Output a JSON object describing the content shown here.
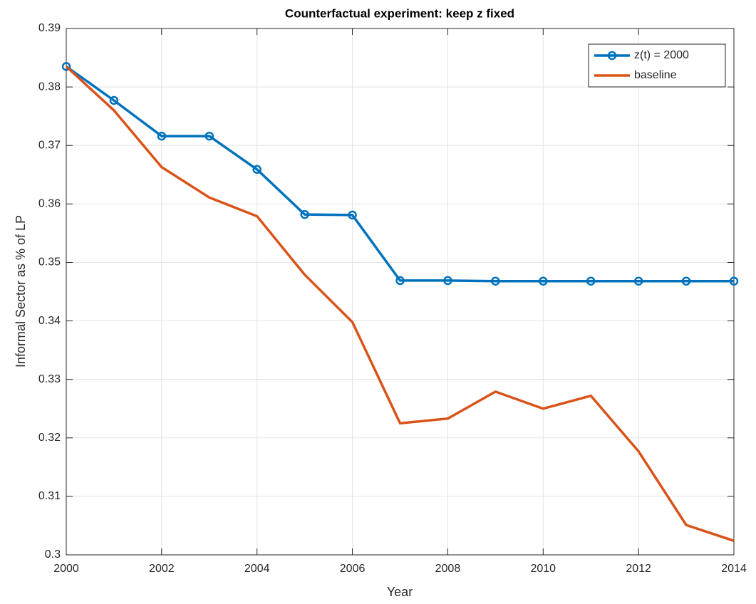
{
  "chart_data": {
    "type": "line",
    "title": "Counterfactual experiment: keep z fixed",
    "x_label": "Year",
    "y_label": "Informal Sector as % of LP",
    "x": [
      2000,
      2001,
      2002,
      2003,
      2004,
      2005,
      2006,
      2007,
      2008,
      2009,
      2010,
      2011,
      2012,
      2013,
      2014
    ],
    "series": [
      {
        "name": "z(t) = 2000",
        "color": "#0072bd",
        "marker": "circle",
        "values": [
          0.3835,
          0.3777,
          0.3716,
          0.3716,
          0.3659,
          0.3582,
          0.3581,
          0.3469,
          0.3469,
          0.3468,
          0.3468,
          0.3468,
          0.3468,
          0.3468,
          0.3468
        ]
      },
      {
        "name": "baseline",
        "color": "#d95319",
        "values": [
          0.3835,
          0.376,
          0.3663,
          0.3611,
          0.3579,
          0.3479,
          0.3398,
          0.3225,
          0.3233,
          0.3279,
          0.325,
          0.3272,
          0.3177,
          0.3051,
          0.3024
        ]
      }
    ],
    "xlim": [
      2000,
      2014
    ],
    "xticks": [
      2000,
      2002,
      2004,
      2006,
      2008,
      2010,
      2012,
      2014
    ],
    "ylim": [
      0.3,
      0.39
    ],
    "yticks": [
      0.3,
      0.31,
      0.32,
      0.33,
      0.34,
      0.35,
      0.36,
      0.37,
      0.38,
      0.39
    ],
    "grid": true,
    "legend_position": "upper-right"
  }
}
